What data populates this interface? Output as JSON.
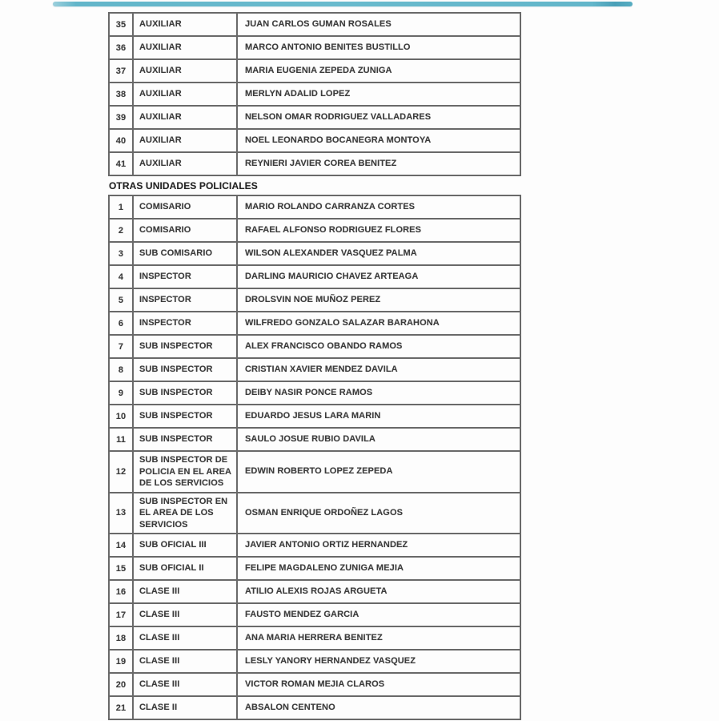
{
  "accent_bar": {
    "color": "#63b6ca"
  },
  "columns": [
    "number",
    "rank",
    "name"
  ],
  "sections": [
    {
      "rows": [
        {
          "num": "35",
          "rank": "AUXILIAR",
          "name": "JUAN CARLOS GUMAN ROSALES"
        },
        {
          "num": "36",
          "rank": "AUXILIAR",
          "name": "MARCO ANTONIO BENITES BUSTILLO"
        },
        {
          "num": "37",
          "rank": "AUXILIAR",
          "name": "MARIA EUGENIA ZEPEDA ZUNIGA"
        },
        {
          "num": "38",
          "rank": "AUXILIAR",
          "name": "MERLYN ADALID LOPEZ"
        },
        {
          "num": "39",
          "rank": "AUXILIAR",
          "name": "NELSON OMAR RODRIGUEZ VALLADARES"
        },
        {
          "num": "40",
          "rank": "AUXILIAR",
          "name": "NOEL LEONARDO BOCANEGRA MONTOYA"
        },
        {
          "num": "41",
          "rank": "AUXILIAR",
          "name": "REYNIERI JAVIER COREA BENITEZ"
        }
      ]
    },
    {
      "title": "OTRAS UNIDADES POLICIALES",
      "rows": [
        {
          "num": "1",
          "rank": "COMISARIO",
          "name": "MARIO ROLANDO CARRANZA CORTES"
        },
        {
          "num": "2",
          "rank": "COMISARIO",
          "name": "RAFAEL ALFONSO RODRIGUEZ FLORES"
        },
        {
          "num": "3",
          "rank": "SUB COMISARIO",
          "name": "WILSON ALEXANDER VASQUEZ PALMA"
        },
        {
          "num": "4",
          "rank": "INSPECTOR",
          "name": "DARLING MAURICIO CHAVEZ ARTEAGA"
        },
        {
          "num": "5",
          "rank": "INSPECTOR",
          "name": "DROLSVIN NOE MUÑOZ PEREZ"
        },
        {
          "num": "6",
          "rank": "INSPECTOR",
          "name": "WILFREDO GONZALO SALAZAR BARAHONA"
        },
        {
          "num": "7",
          "rank": "SUB INSPECTOR",
          "name": "ALEX FRANCISCO OBANDO RAMOS"
        },
        {
          "num": "8",
          "rank": "SUB INSPECTOR",
          "name": "CRISTIAN XAVIER MENDEZ DAVILA"
        },
        {
          "num": "9",
          "rank": "SUB INSPECTOR",
          "name": "DEIBY NASIR PONCE RAMOS"
        },
        {
          "num": "10",
          "rank": "SUB INSPECTOR",
          "name": "EDUARDO JESUS LARA MARIN"
        },
        {
          "num": "11",
          "rank": "SUB INSPECTOR",
          "name": "SAULO JOSUE RUBIO DAVILA"
        },
        {
          "num": "12",
          "rank": "SUB INSPECTOR DE POLICIA EN EL AREA DE LOS SERVICIOS",
          "name": "EDWIN ROBERTO LOPEZ ZEPEDA"
        },
        {
          "num": "13",
          "rank": "SUB INSPECTOR EN EL AREA DE LOS SERVICIOS",
          "name": "OSMAN ENRIQUE ORDOÑEZ LAGOS"
        },
        {
          "num": "14",
          "rank": "SUB OFICIAL III",
          "name": "JAVIER ANTONIO ORTIZ HERNANDEZ"
        },
        {
          "num": "15",
          "rank": "SUB OFICIAL II",
          "name": "FELIPE MAGDALENO ZUNIGA MEJIA"
        },
        {
          "num": "16",
          "rank": "CLASE III",
          "name": "ATILIO ALEXIS ROJAS ARGUETA"
        },
        {
          "num": "17",
          "rank": "CLASE III",
          "name": "FAUSTO MENDEZ GARCIA"
        },
        {
          "num": "18",
          "rank": "CLASE III",
          "name": "ANA MARIA HERRERA BENITEZ"
        },
        {
          "num": "19",
          "rank": "CLASE III",
          "name": "LESLY YANORY HERNANDEZ VASQUEZ"
        },
        {
          "num": "20",
          "rank": "CLASE III",
          "name": "VICTOR ROMAN MEJIA CLAROS"
        },
        {
          "num": "21",
          "rank": "CLASE II",
          "name": "ABSALON CENTENO"
        }
      ]
    }
  ]
}
